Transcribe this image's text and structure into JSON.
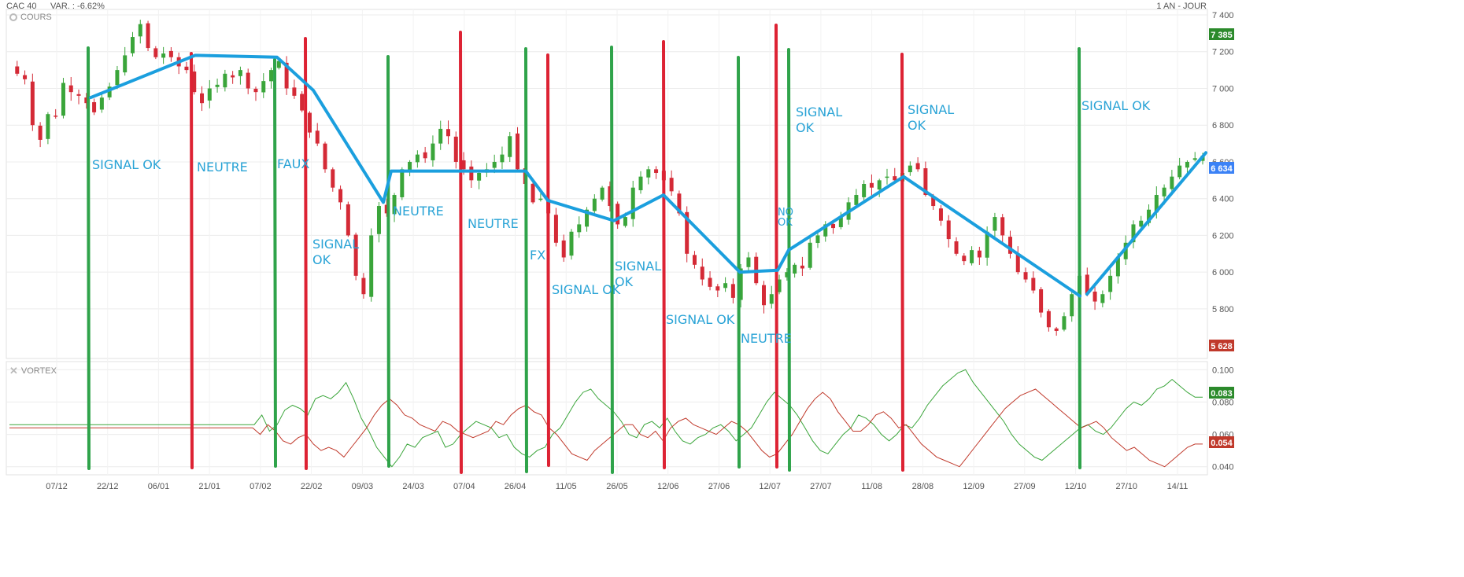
{
  "header": {
    "instrument": "CAC 40",
    "variation": "VAR. : -6.62%",
    "period": "1 AN - JOUR"
  },
  "panels": {
    "price_label": "COURS",
    "indicator_label": "VORTEX"
  },
  "colors": {
    "up": "#3aa53a",
    "down": "#d42a36",
    "trend": "#1b9fde",
    "annotation": "#29a3d6",
    "vortex_plus": "#3aa53a",
    "vortex_minus": "#c0392b"
  },
  "chart_data": [
    {
      "type": "candlestick",
      "panel": "price",
      "x_ticks": [
        "07/12",
        "22/12",
        "06/01",
        "21/01",
        "07/02",
        "22/02",
        "09/03",
        "24/03",
        "07/04",
        "26/04",
        "11/05",
        "26/05",
        "12/06",
        "27/06",
        "12/07",
        "27/07",
        "11/08",
        "28/08",
        "12/09",
        "27/09",
        "12/10",
        "27/10",
        "14/11"
      ],
      "y_ticks": [
        "5 800",
        "6 000",
        "6 200",
        "6 400",
        "6 600",
        "6 800",
        "7 000",
        "7 200",
        "7 400"
      ],
      "ylim": [
        5530,
        7430
      ],
      "last_price_badge": "6 634",
      "high_badge": "7 385",
      "low_badge": "5 628",
      "close_path": [
        7120,
        7080,
        7050,
        6800,
        6720,
        6860,
        6850,
        7030,
        6980,
        6960,
        6920,
        6870,
        6950,
        7010,
        7100,
        7180,
        7280,
        7350,
        7220,
        7170,
        7190,
        7170,
        7120,
        7100,
        6980,
        6920,
        7000,
        7020,
        7080,
        7060,
        7100,
        7000,
        6980,
        7040,
        7100,
        7150,
        7000,
        6960,
        6880,
        6760,
        6700,
        6560,
        6460,
        6380,
        6200,
        5980,
        5880,
        6200,
        6360,
        6320,
        6420,
        6560,
        6600,
        6640,
        6620,
        6700,
        6780,
        6740,
        6600,
        6560,
        6500,
        6540,
        6560,
        6600,
        6640,
        6740,
        6560,
        6480,
        6380,
        6400,
        6320,
        6160,
        6080,
        6220,
        6260,
        6340,
        6400,
        6460,
        6360,
        6260,
        6300,
        6460,
        6520,
        6560,
        6540,
        6500,
        6440,
        6320,
        6100,
        6040,
        5960,
        5920,
        5900,
        5940,
        5860,
        6020,
        6080,
        5940,
        5820,
        5880,
        5960,
        6000,
        6040,
        6020,
        6160,
        6200,
        6260,
        6240,
        6300,
        6380,
        6420,
        6480,
        6460,
        6500,
        6520,
        6500,
        6540,
        6580,
        6560,
        6420,
        6360,
        6280,
        6180,
        6100,
        6060,
        6120,
        6080,
        6220,
        6300,
        6200,
        6100,
        6000,
        5960,
        5900,
        5780,
        5700,
        5680,
        5760,
        5880,
        5980,
        5880,
        5840,
        5880,
        5980,
        6080,
        6160,
        6260,
        6280,
        6340,
        6420,
        6460,
        6520,
        6580,
        6600,
        6620,
        6634
      ]
    },
    {
      "type": "line",
      "panel": "vortex",
      "y_ticks": [
        "0.040",
        "0.060",
        "0.080",
        "0.100"
      ],
      "ylim": [
        0.035,
        0.105
      ],
      "badge_plus": "0.083",
      "badge_minus": "0.054",
      "series": [
        {
          "values": [
            0.066,
            0.066,
            0.066,
            0.066,
            0.066,
            0.066,
            0.066,
            0.066,
            0.066,
            0.066,
            0.066,
            0.066,
            0.066,
            0.066,
            0.066,
            0.066,
            0.066,
            0.066,
            0.066,
            0.066,
            0.066,
            0.066,
            0.066,
            0.066,
            0.066,
            0.066,
            0.066,
            0.066,
            0.066,
            0.066,
            0.066,
            0.066,
            0.066,
            0.072,
            0.062,
            0.066,
            0.075,
            0.078,
            0.076,
            0.072,
            0.082,
            0.084,
            0.082,
            0.086,
            0.092,
            0.082,
            0.07,
            0.062,
            0.052,
            0.046,
            0.04,
            0.046,
            0.054,
            0.052,
            0.058,
            0.06,
            0.062,
            0.052,
            0.054,
            0.06,
            0.064,
            0.068,
            0.066,
            0.064,
            0.058,
            0.06,
            0.052,
            0.048,
            0.046,
            0.05,
            0.052,
            0.06,
            0.064,
            0.072,
            0.08,
            0.086,
            0.088,
            0.082,
            0.078,
            0.074,
            0.068,
            0.06,
            0.058,
            0.066,
            0.068,
            0.064,
            0.07,
            0.062,
            0.056,
            0.054,
            0.058,
            0.06,
            0.064,
            0.066,
            0.062,
            0.056,
            0.06,
            0.064,
            0.072,
            0.08,
            0.086,
            0.082,
            0.078,
            0.072,
            0.064,
            0.056,
            0.05,
            0.048,
            0.054,
            0.06,
            0.064,
            0.072,
            0.07,
            0.066,
            0.06,
            0.056,
            0.06,
            0.066,
            0.064,
            0.07,
            0.078,
            0.084,
            0.09,
            0.094,
            0.098,
            0.1,
            0.092,
            0.086,
            0.08,
            0.074,
            0.068,
            0.06,
            0.054,
            0.05,
            0.046,
            0.044,
            0.048,
            0.052,
            0.056,
            0.06,
            0.064,
            0.066,
            0.062,
            0.06,
            0.064,
            0.07,
            0.076,
            0.08,
            0.078,
            0.082,
            0.088,
            0.09,
            0.094,
            0.09,
            0.086,
            0.083,
            0.083
          ]
        },
        {
          "values": [
            0.064,
            0.064,
            0.064,
            0.064,
            0.064,
            0.064,
            0.064,
            0.064,
            0.064,
            0.064,
            0.064,
            0.064,
            0.064,
            0.064,
            0.064,
            0.064,
            0.064,
            0.064,
            0.064,
            0.064,
            0.064,
            0.064,
            0.064,
            0.064,
            0.064,
            0.064,
            0.064,
            0.064,
            0.064,
            0.064,
            0.064,
            0.064,
            0.064,
            0.06,
            0.066,
            0.062,
            0.056,
            0.054,
            0.058,
            0.06,
            0.054,
            0.05,
            0.052,
            0.05,
            0.046,
            0.052,
            0.058,
            0.064,
            0.072,
            0.078,
            0.082,
            0.078,
            0.072,
            0.07,
            0.066,
            0.064,
            0.062,
            0.068,
            0.066,
            0.062,
            0.06,
            0.058,
            0.06,
            0.062,
            0.068,
            0.066,
            0.072,
            0.076,
            0.078,
            0.074,
            0.072,
            0.064,
            0.06,
            0.054,
            0.048,
            0.046,
            0.044,
            0.05,
            0.054,
            0.058,
            0.062,
            0.066,
            0.066,
            0.06,
            0.058,
            0.062,
            0.056,
            0.064,
            0.068,
            0.07,
            0.066,
            0.064,
            0.062,
            0.06,
            0.064,
            0.068,
            0.066,
            0.062,
            0.056,
            0.05,
            0.046,
            0.048,
            0.054,
            0.06,
            0.068,
            0.076,
            0.082,
            0.086,
            0.082,
            0.074,
            0.068,
            0.062,
            0.062,
            0.066,
            0.072,
            0.074,
            0.07,
            0.064,
            0.066,
            0.06,
            0.054,
            0.05,
            0.046,
            0.044,
            0.042,
            0.04,
            0.046,
            0.052,
            0.058,
            0.064,
            0.07,
            0.076,
            0.08,
            0.084,
            0.086,
            0.088,
            0.084,
            0.08,
            0.076,
            0.072,
            0.068,
            0.064,
            0.066,
            0.068,
            0.064,
            0.058,
            0.054,
            0.05,
            0.052,
            0.048,
            0.044,
            0.042,
            0.04,
            0.044,
            0.048,
            0.052,
            0.054,
            0.054
          ]
        }
      ]
    }
  ],
  "annotations": {
    "signal_lines": [
      {
        "color": "green",
        "pos": 112
      },
      {
        "color": "red",
        "pos": 243
      },
      {
        "color": "green",
        "pos": 349
      },
      {
        "color": "red",
        "pos": 388
      },
      {
        "color": "green",
        "pos": 493
      },
      {
        "color": "red",
        "pos": 585
      },
      {
        "color": "green",
        "pos": 668
      },
      {
        "color": "red",
        "pos": 696
      },
      {
        "color": "green",
        "pos": 777
      },
      {
        "color": "red",
        "pos": 843
      },
      {
        "color": "green",
        "pos": 938
      },
      {
        "color": "red",
        "pos": 986
      },
      {
        "color": "green",
        "pos": 1002
      },
      {
        "color": "red",
        "pos": 1146
      },
      {
        "color": "green",
        "pos": 1371
      }
    ],
    "labels": [
      {
        "text": "SIGNAL OK"
      },
      {
        "text": "NEUTRE"
      },
      {
        "text": "FAUX"
      },
      {
        "text": "SIGNAL\nOK"
      },
      {
        "text": "NEUTRE"
      },
      {
        "text": "NEUTRE"
      },
      {
        "text": "FX"
      },
      {
        "text": "SIGNAL OK"
      },
      {
        "text": "SIGNAL\nOK"
      },
      {
        "text": "SIGNAL OK"
      },
      {
        "text": "NEUTRE"
      },
      {
        "text": "NO\nOK"
      },
      {
        "text": "SIGNAL\nOK"
      },
      {
        "text": "SIGNAL\nOK"
      },
      {
        "text": "SIGNAL OK"
      }
    ],
    "trend_points": [
      [
        115,
        6950
      ],
      [
        248,
        7180
      ],
      [
        352,
        7170
      ],
      [
        398,
        6990
      ],
      [
        487,
        6380
      ],
      [
        497,
        6550
      ],
      [
        668,
        6550
      ],
      [
        696,
        6390
      ],
      [
        780,
        6280
      ],
      [
        843,
        6420
      ],
      [
        940,
        6000
      ],
      [
        988,
        6010
      ],
      [
        1002,
        6120
      ],
      [
        1148,
        6520
      ],
      [
        1372,
        5870
      ]
    ],
    "trend_tail": [
      [
        1381,
        5880
      ],
      [
        1532,
        6650
      ]
    ]
  }
}
